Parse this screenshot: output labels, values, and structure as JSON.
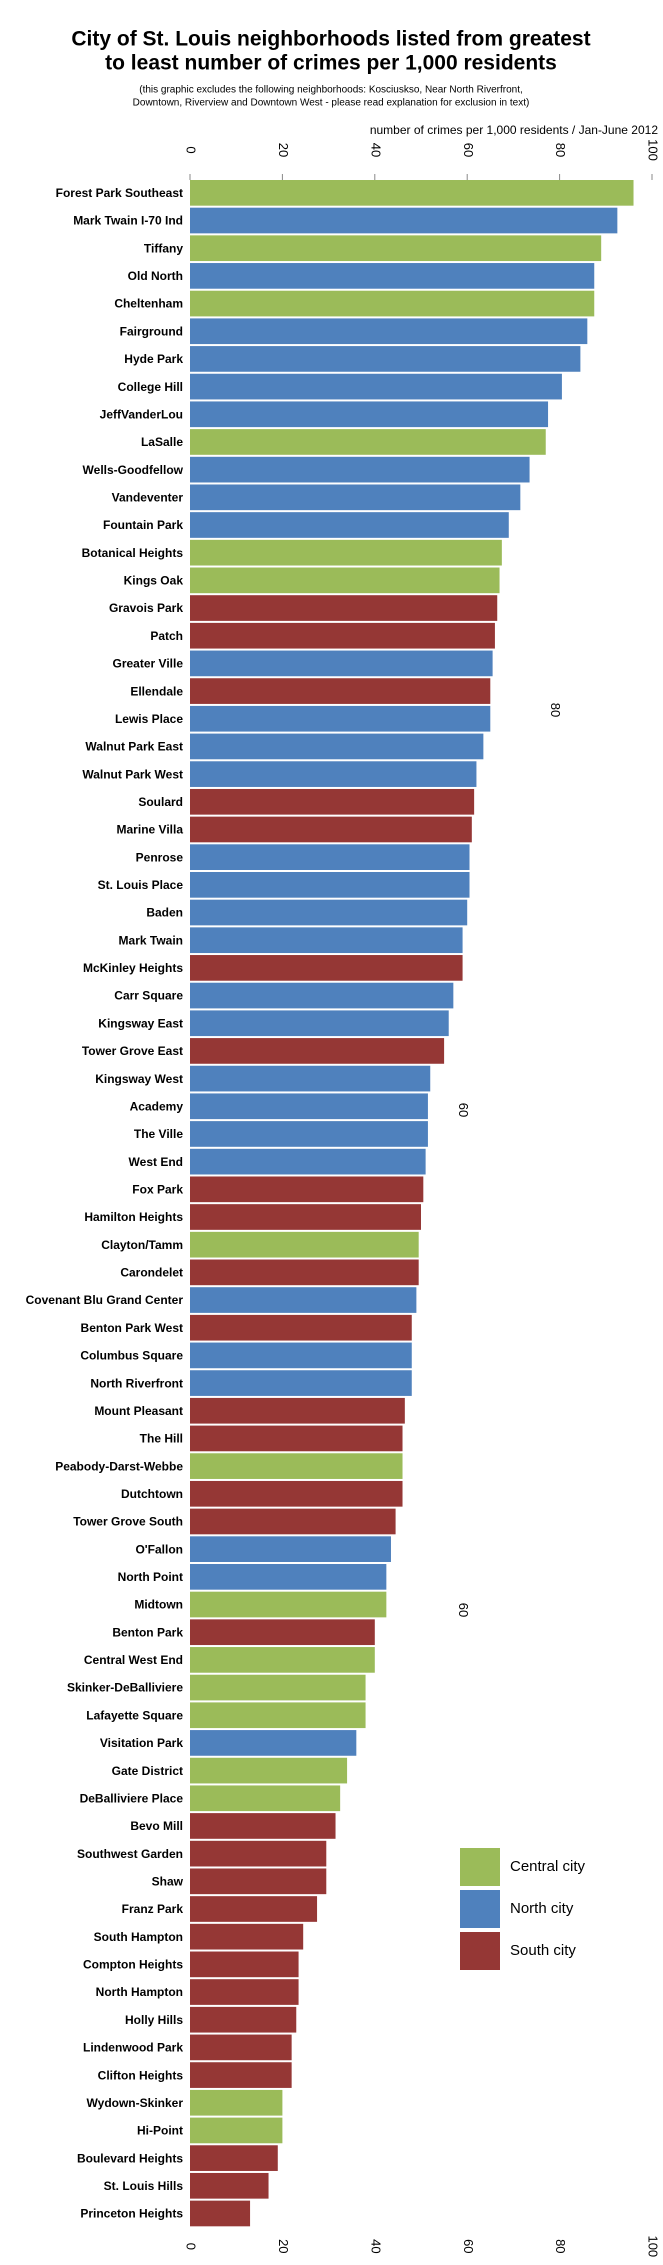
{
  "chart_data": {
    "type": "bar",
    "orientation": "horizontal",
    "title": [
      "City of St. Louis neighborhoods listed from greatest",
      "to least number of crimes per 1,000 residents"
    ],
    "subtitle": [
      "(this graphic excludes the following neighborhoods: Kosciuskso, Near North Riverfront,",
      "Downtown, Riverview and Downtown West - please read explanation for exclusion in text)"
    ],
    "x_label": "number of crimes per 1,000 residents / Jan-June 2012",
    "xlim": [
      0,
      100
    ],
    "xticks": [
      0,
      20,
      40,
      60,
      80,
      100
    ],
    "legend": [
      {
        "name": "Central city",
        "color": "#9bbb59"
      },
      {
        "name": "North city",
        "color": "#4f81bd"
      },
      {
        "name": "South city",
        "color": "#953735"
      }
    ],
    "categories": [
      "Forest Park Southeast",
      "Mark Twain I-70 Ind",
      "Tiffany",
      "Old North",
      "Cheltenham",
      "Fairground",
      "Hyde Park",
      "College Hill",
      "JeffVanderLou",
      "LaSalle",
      "Wells-Goodfellow",
      "Vandeventer",
      "Fountain Park",
      "Botanical Heights",
      "Kings Oak",
      "Gravois Park",
      "Patch",
      "Greater Ville",
      "Ellendale",
      "Lewis Place",
      "Walnut Park East",
      "Walnut Park West",
      "Soulard",
      "Marine Villa",
      "Penrose",
      "St. Louis Place",
      "Baden",
      "Mark Twain",
      "McKinley Heights",
      "Carr Square",
      "Kingsway East",
      "Tower Grove East",
      "Kingsway West",
      "Academy",
      "The Ville",
      "West End",
      "Fox Park",
      "Hamilton Heights",
      "Clayton/Tamm",
      "Carondelet",
      "Covenant Blu Grand Center",
      "Benton Park West",
      "Columbus Square",
      "North Riverfront",
      "Mount Pleasant",
      "The Hill",
      "Peabody-Darst-Webbe",
      "Dutchtown",
      "Tower Grove South",
      "O'Fallon",
      "North Point",
      "Midtown",
      "Benton Park",
      "Central West End",
      "Skinker-DeBalliviere",
      "Lafayette Square",
      "Visitation Park",
      "Gate District",
      "DeBalliviere Place",
      "Bevo Mill",
      "Southwest Garden",
      "Shaw",
      "Franz Park",
      "South Hampton",
      "Compton Heights",
      "North Hampton",
      "Holly Hills",
      "Lindenwood Park",
      "Clifton Heights",
      "Wydown-Skinker",
      "Hi-Point",
      "Boulevard Heights",
      "St. Louis Hills",
      "Princeton Heights"
    ],
    "values": [
      96,
      92.5,
      89,
      87.5,
      87.5,
      86,
      84.5,
      80.5,
      77.5,
      77,
      73.5,
      71.5,
      69,
      67.5,
      67,
      66.5,
      66,
      65.5,
      65,
      65,
      63.5,
      62,
      61.5,
      61,
      60.5,
      60.5,
      60,
      59,
      59,
      57,
      56,
      55,
      52,
      51.5,
      51.5,
      51,
      50.5,
      50,
      49.5,
      49.5,
      49,
      48,
      48,
      48,
      46.5,
      46,
      46,
      46,
      44.5,
      43.5,
      42.5,
      42.5,
      40,
      40,
      38,
      38,
      36,
      34,
      32.5,
      31.5,
      29.5,
      29.5,
      27.5,
      24.5,
      23.5,
      23.5,
      23,
      22,
      22,
      20,
      20,
      19,
      17,
      13
    ],
    "region": [
      0,
      1,
      0,
      1,
      0,
      1,
      1,
      1,
      1,
      0,
      1,
      1,
      1,
      0,
      0,
      2,
      2,
      1,
      2,
      1,
      1,
      1,
      2,
      2,
      1,
      1,
      1,
      1,
      2,
      1,
      1,
      2,
      1,
      1,
      1,
      1,
      2,
      2,
      0,
      2,
      1,
      2,
      1,
      1,
      2,
      2,
      0,
      2,
      2,
      1,
      1,
      0,
      2,
      0,
      0,
      0,
      1,
      0,
      0,
      2,
      2,
      2,
      2,
      2,
      2,
      2,
      2,
      2,
      2,
      0,
      0,
      2,
      2,
      2
    ],
    "annotations": [
      {
        "value": 80,
        "label": "80"
      },
      {
        "value": 60,
        "label": "60"
      },
      {
        "value": 60,
        "label": "60"
      }
    ]
  }
}
